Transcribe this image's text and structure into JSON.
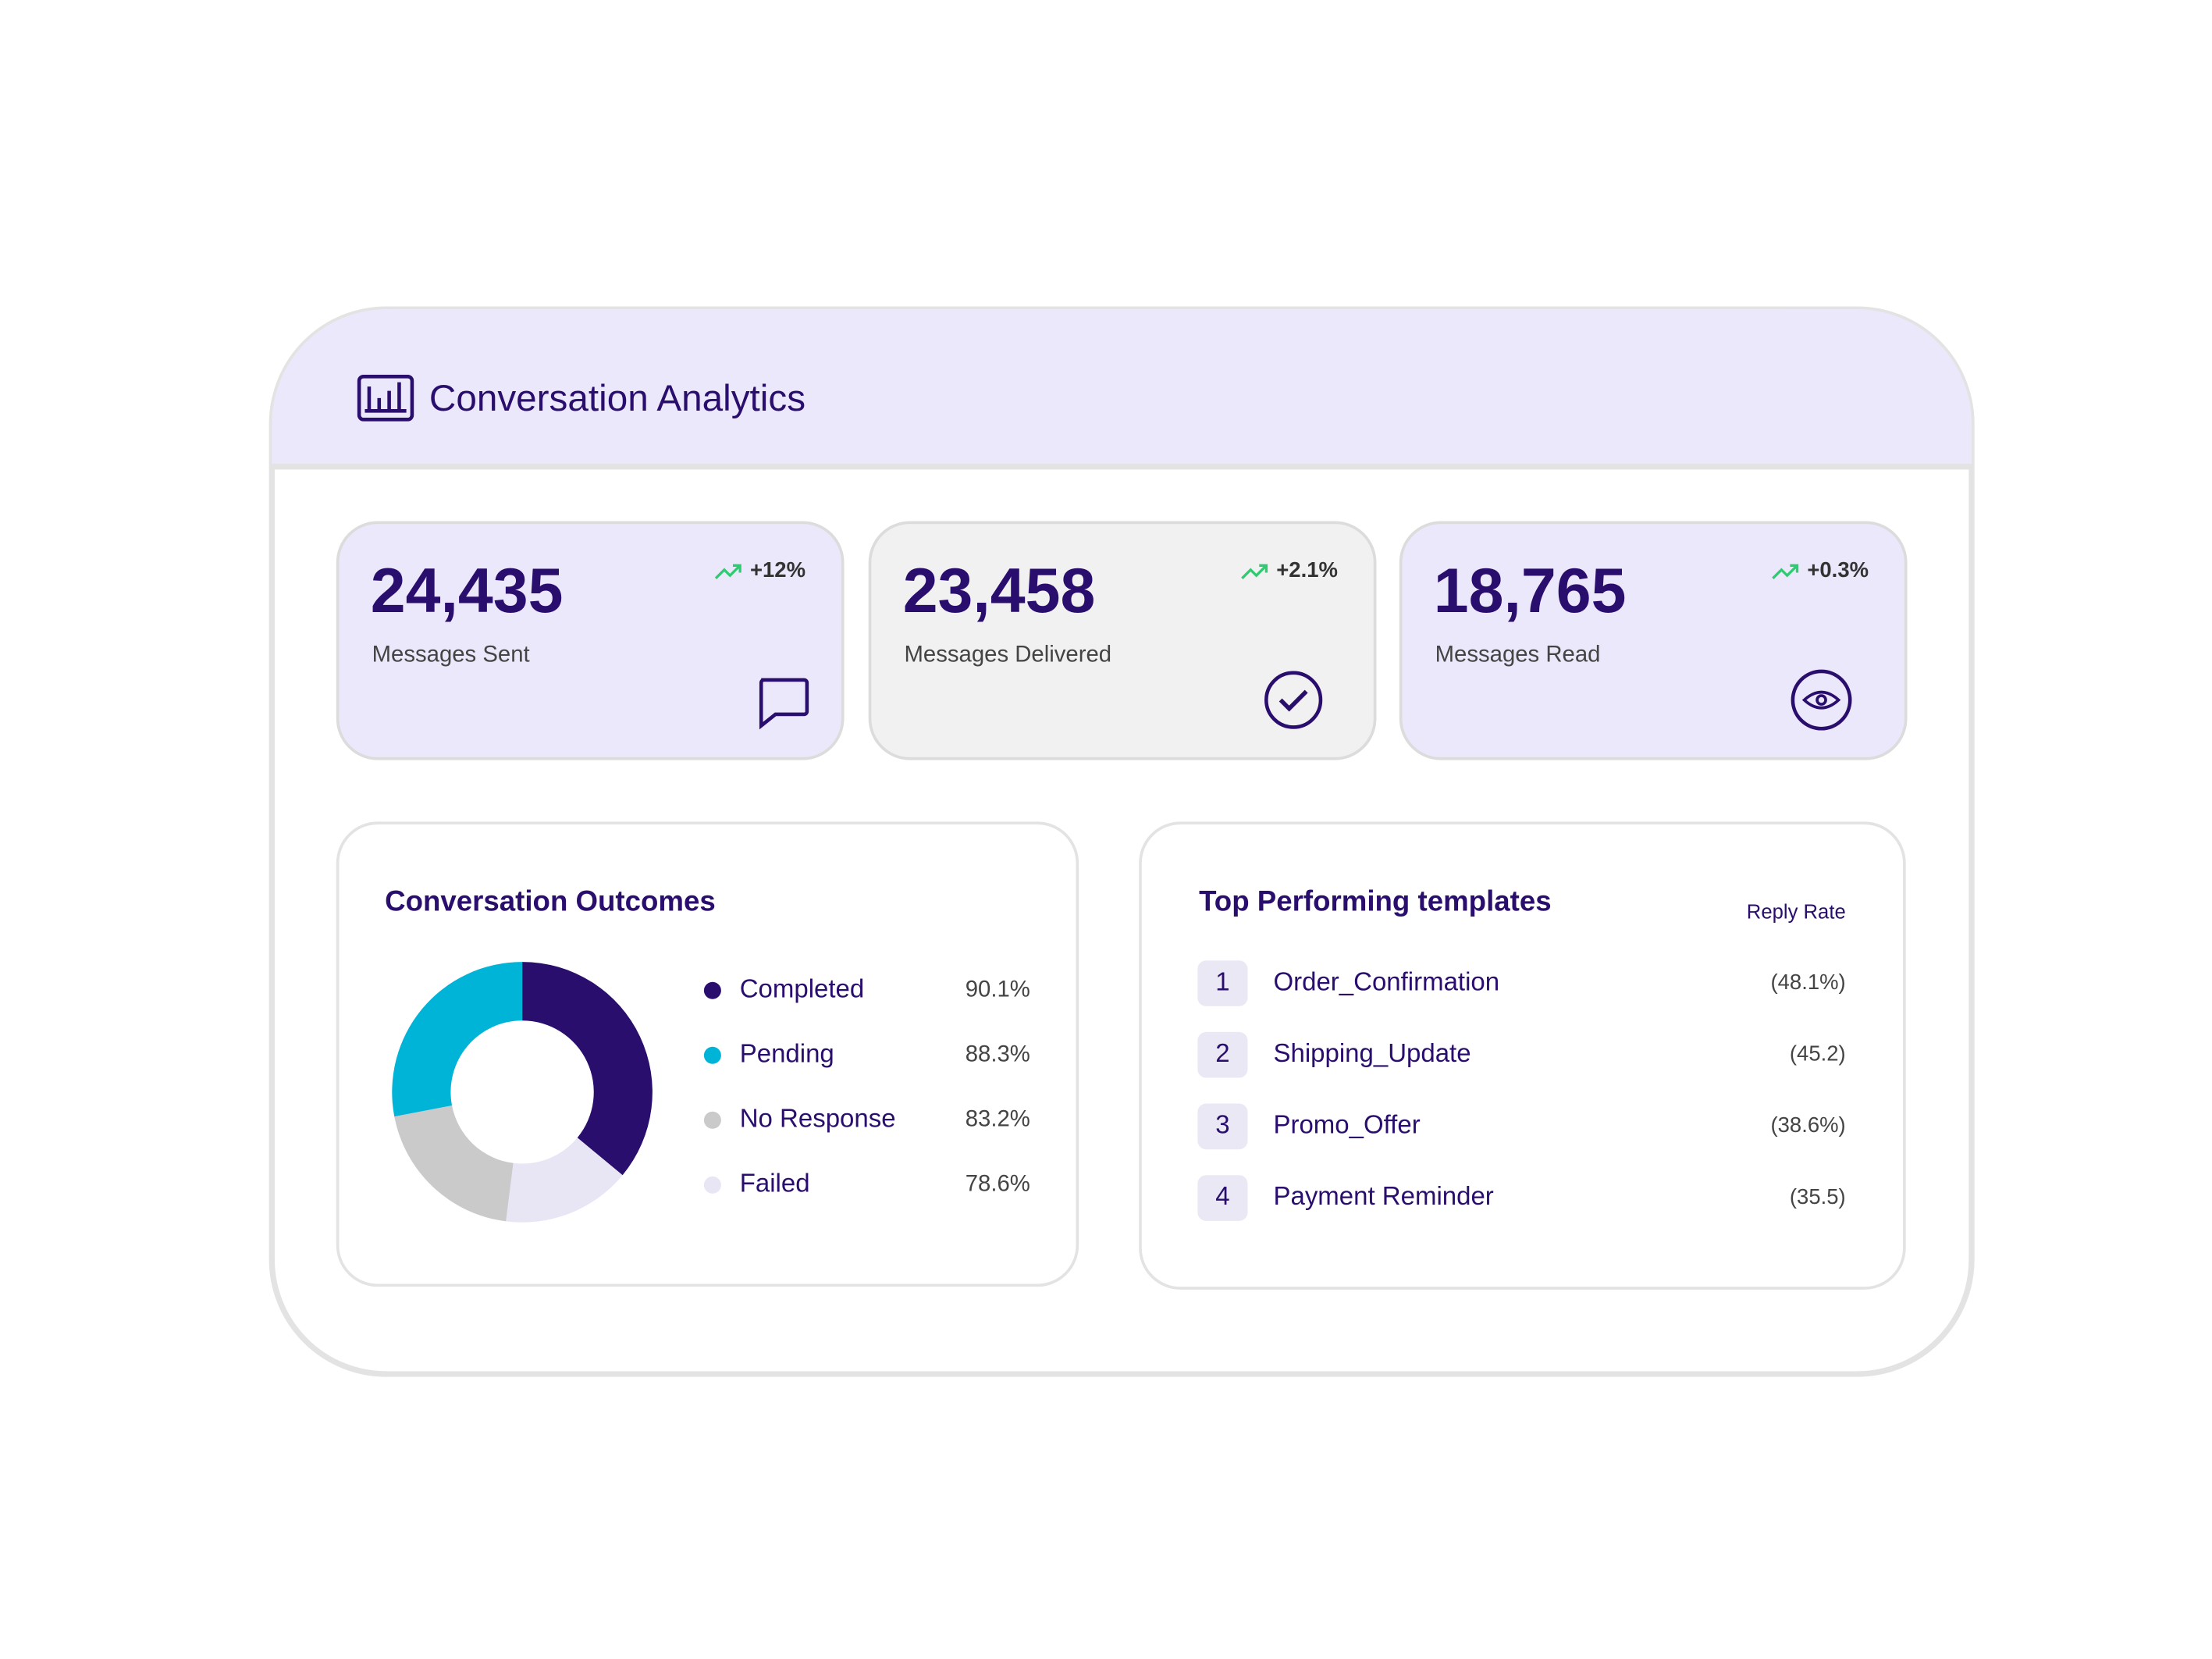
{
  "header": {
    "title": "Conversation Analytics"
  },
  "stats": [
    {
      "value": "24,435",
      "label": "Messages Sent",
      "change": "+12%"
    },
    {
      "value": "23,458",
      "label": "Messages Delivered",
      "change": "+2.1%"
    },
    {
      "value": "18,765",
      "label": "Messages Read",
      "change": "+0.3%"
    }
  ],
  "chart_data": {
    "type": "donut",
    "title": "Conversation Outcomes",
    "categories": [
      "Completed",
      "Pending",
      "No Response",
      "Failed"
    ],
    "values": [
      36,
      28,
      20,
      16
    ],
    "colors": [
      "#2a0e6e",
      "#00b4d8",
      "#cacaca",
      "#e8e5f5"
    ],
    "legend_rates": [
      "90.1%",
      "88.3%",
      "83.2%",
      "78.6%"
    ]
  },
  "templates": {
    "title": "Top Performing templates",
    "column": "Reply Rate",
    "rows": [
      [
        "1",
        "Order_Confirmation",
        "(48.1%)"
      ],
      [
        "2",
        "Shipping_Update",
        "(45.2)"
      ],
      [
        "3",
        "Promo_Offer",
        "(38.6%)"
      ],
      [
        "4",
        "Payment Reminder",
        "(35.5)"
      ]
    ]
  }
}
